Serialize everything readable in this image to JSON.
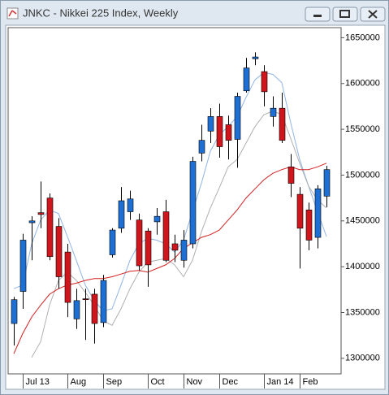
{
  "window": {
    "title": "JNKC - Nikkei 225 Index, Weekly"
  },
  "chart_data": {
    "type": "candlestick",
    "categories": [
      null,
      "Jul 13",
      null,
      null,
      null,
      null,
      "Aug",
      null,
      null,
      null,
      "Sep",
      null,
      null,
      null,
      null,
      "Oct",
      null,
      null,
      null,
      "Nov",
      null,
      null,
      null,
      "Dec",
      null,
      null,
      null,
      null,
      "Jan 14",
      null,
      null,
      null,
      "Feb",
      null,
      null,
      null
    ],
    "open": [
      1338000,
      1373000,
      1448000,
      1459000,
      1475000,
      1444000,
      1416000,
      1343000,
      1365000,
      1370000,
      1339000,
      1413000,
      1442000,
      1460000,
      1451000,
      1439000,
      1449000,
      1460000,
      1425000,
      1407000,
      1425000,
      1524000,
      1548000,
      1564000,
      1555000,
      1539000,
      1592000,
      1627000,
      1613000,
      1564000,
      1573000,
      1509000,
      1479000,
      1462000,
      1432000,
      1477000
    ],
    "high": [
      1367000,
      1436000,
      1455000,
      1493000,
      1480000,
      1453000,
      1425000,
      1376000,
      1376000,
      1376000,
      1391000,
      1442000,
      1487000,
      1483000,
      1458000,
      1442000,
      1464000,
      1473000,
      1435000,
      1440000,
      1520000,
      1555000,
      1573000,
      1578000,
      1565000,
      1590000,
      1628000,
      1634000,
      1620000,
      1586000,
      1590000,
      1523000,
      1487000,
      1470000,
      1489000,
      1510000
    ],
    "low": [
      1314000,
      1354000,
      1407000,
      1442000,
      1407000,
      1376000,
      1345000,
      1332000,
      1320000,
      1316000,
      1334000,
      1410000,
      1437000,
      1451000,
      1396000,
      1378000,
      1435000,
      1405000,
      1405000,
      1399000,
      1420000,
      1515000,
      1535000,
      1519000,
      1517000,
      1508000,
      1590000,
      1620000,
      1575000,
      1553000,
      1535000,
      1476000,
      1398000,
      1418000,
      1420000,
      1465000
    ],
    "close": [
      1364000,
      1429000,
      1450000,
      1457000,
      1411000,
      1389000,
      1361000,
      1363000,
      1364000,
      1338000,
      1385000,
      1440000,
      1472000,
      1474000,
      1401000,
      1402000,
      1455000,
      1407000,
      1418000,
      1429000,
      1515000,
      1538000,
      1564000,
      1531000,
      1538000,
      1586000,
      1617000,
      1629000,
      1591000,
      1573000,
      1538000,
      1491000,
      1442000,
      1429000,
      1485000,
      1506000
    ],
    "up_color": "#1e6fd4",
    "down_color": "#d0161c",
    "lines": [
      {
        "color": "#8fb4e6",
        "values": [
          1376000,
          1380000,
          1425000,
          1451000,
          1462000,
          1458000,
          1433000,
          1407000,
          1380000,
          1363000,
          1352000,
          1354000,
          1380000,
          1407000,
          1425000,
          1431000,
          1429000,
          1425000,
          1416000,
          1429000,
          1460000,
          1491000,
          1526000,
          1544000,
          1553000,
          1564000,
          1585000,
          1604000,
          1612000,
          1610000,
          1601000,
          1557000,
          1517000,
          1488000,
          1460000,
          1433000
        ]
      },
      {
        "color": "#b0b0b0",
        "values": [
          null,
          null,
          1301000,
          1318000,
          1358000,
          1385000,
          1394000,
          1385000,
          1372000,
          1358000,
          1341000,
          1336000,
          1354000,
          1376000,
          1394000,
          1405000,
          1407000,
          1409000,
          1402000,
          1389000,
          1407000,
          1438000,
          1464000,
          1486000,
          1509000,
          1517000,
          1535000,
          1553000,
          1566000,
          1570000,
          1566000,
          1540000,
          1513000,
          1488000,
          1473000,
          1464000
        ]
      },
      {
        "color": "#d42020",
        "values": [
          1305000,
          1327000,
          1345000,
          1358000,
          1370000,
          1376000,
          1380000,
          1382000,
          1385000,
          1387000,
          1387000,
          1389000,
          1392000,
          1395000,
          1396000,
          1394000,
          1398000,
          1402000,
          1409000,
          1420000,
          1426000,
          1432000,
          1435000,
          1440000,
          1451000,
          1462000,
          1475000,
          1485000,
          1495000,
          1502000,
          1506000,
          1509000,
          1506000,
          1506000,
          1509000,
          1513000
        ]
      }
    ],
    "ylim": [
      1283000,
      1661000
    ],
    "yticks": [
      1300000,
      1350000,
      1400000,
      1450000,
      1500000,
      1550000,
      1600000,
      1650000
    ]
  }
}
